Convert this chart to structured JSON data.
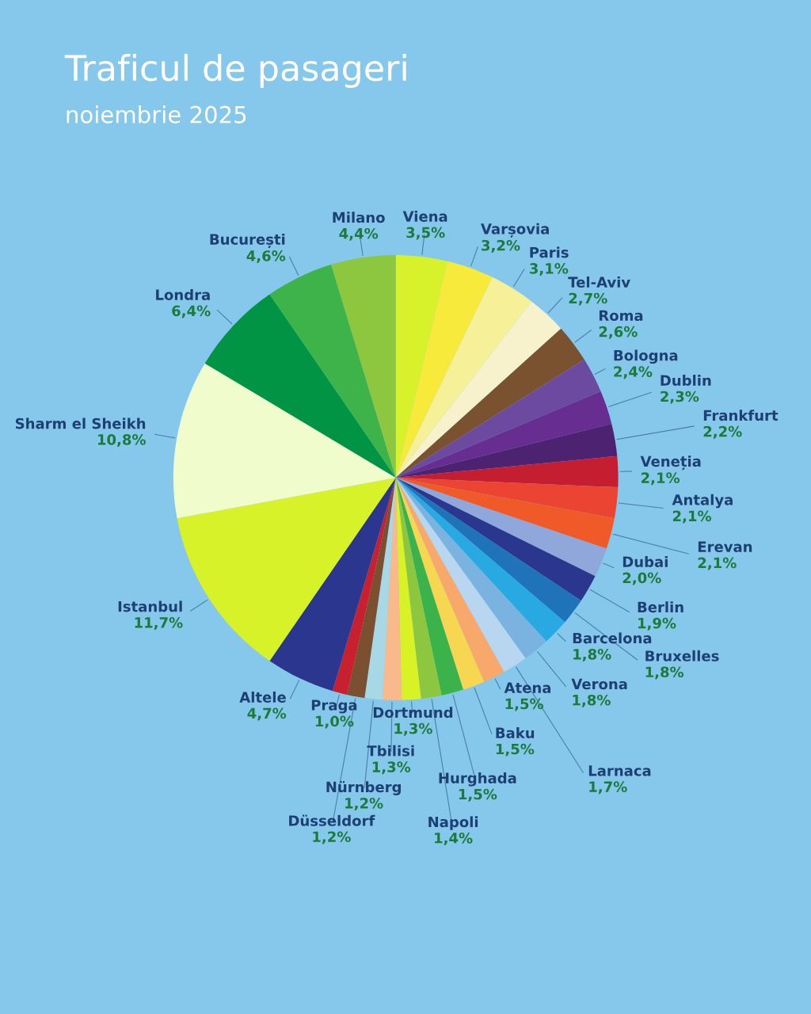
{
  "chart_data": {
    "type": "pie",
    "title": "Traficul de pasageri",
    "subtitle": "noiembrie 2025",
    "categories": [
      "Viena",
      "Varșovia",
      "Paris",
      "Tel-Aviv",
      "Roma",
      "Bologna",
      "Dublin",
      "Frankfurt",
      "Veneția",
      "Antalya",
      "Erevan",
      "Dubai",
      "Berlin",
      "Bruxelles",
      "Barcelona",
      "Verona",
      "Larnaca",
      "Atena",
      "Baku",
      "Hurghada",
      "Napoli",
      "Dortmund",
      "Tbilisi",
      "Nürnberg",
      "Düsseldorf",
      "Praga",
      "Altele",
      "Istanbul",
      "Sharm el Sheikh",
      "Londra",
      "București",
      "Milano"
    ],
    "values": [
      3.5,
      3.2,
      3.1,
      2.7,
      2.6,
      2.4,
      2.3,
      2.2,
      2.1,
      2.1,
      2.1,
      2.0,
      1.9,
      1.8,
      1.8,
      1.8,
      1.7,
      1.5,
      1.5,
      1.5,
      1.4,
      1.3,
      1.3,
      1.2,
      1.2,
      1.0,
      4.7,
      11.7,
      10.8,
      6.4,
      4.6,
      4.4
    ],
    "value_labels": [
      "3,5%",
      "3,2%",
      "3,1%",
      "2,7%",
      "2,6%",
      "2,4%",
      "2,3%",
      "2,2%",
      "2,1%",
      "2,1%",
      "2,1%",
      "2,0%",
      "1,9%",
      "1,8%",
      "1,8%",
      "1,8%",
      "1,7%",
      "1,5%",
      "1,5%",
      "1,5%",
      "1,4%",
      "1,3%",
      "1,3%",
      "1,2%",
      "1,2%",
      "1,0%",
      "4,7%",
      "11,7%",
      "10,8%",
      "6,4%",
      "4,6%",
      "4,4%"
    ],
    "colors": [
      "#d7f22a",
      "#f8ea3a",
      "#f6f098",
      "#f7f2cc",
      "#7b5230",
      "#6b4aa0",
      "#682d91",
      "#4d2270",
      "#c41e30",
      "#ec4433",
      "#f05a28",
      "#8fa7da",
      "#2b368f",
      "#1f73b8",
      "#29a9e1",
      "#7ab3e0",
      "#b8d6f0",
      "#f8a86a",
      "#f7d652",
      "#3cb24a",
      "#8dc63f",
      "#d9f226",
      "#f9b98a",
      "#a8d8e6",
      "#7a5030",
      "#c8202e",
      "#2b368f",
      "#d8f229",
      "#f0fccc",
      "#009444",
      "#3db34a",
      "#8dc63f"
    ]
  }
}
